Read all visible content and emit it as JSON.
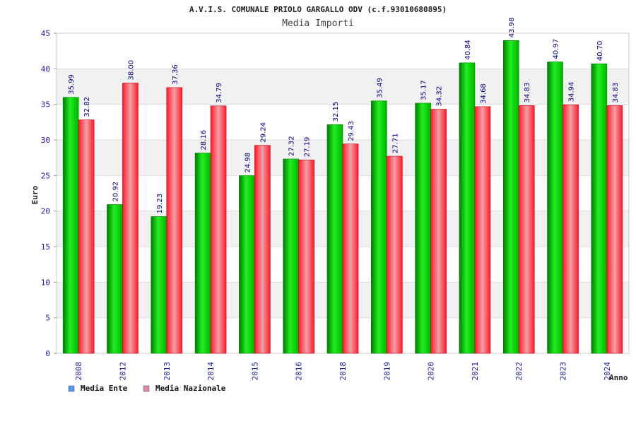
{
  "chart_data": {
    "type": "bar",
    "title": "A.V.I.S. COMUNALE PRIOLO GARGALLO ODV (c.f.93010680895)",
    "subtitle": "Media Importi",
    "xlabel": "Anno",
    "ylabel": "Euro",
    "ylim": [
      0,
      45
    ],
    "yticks": [
      0,
      5,
      10,
      15,
      20,
      25,
      30,
      35,
      40,
      45
    ],
    "categories": [
      "2008",
      "2012",
      "2013",
      "2014",
      "2015",
      "2016",
      "2018",
      "2019",
      "2020",
      "2021",
      "2022",
      "2023",
      "2024"
    ],
    "series": [
      {
        "name": "Media Ente",
        "color": "#00cc00",
        "legend_color": "#5599ee",
        "values": [
          35.99,
          20.92,
          19.23,
          28.16,
          24.98,
          27.32,
          32.15,
          35.49,
          35.17,
          40.84,
          43.98,
          40.97,
          40.7
        ],
        "labels": [
          "35.99",
          "20.92",
          "19.23",
          "28.16",
          "24.98",
          "27.32",
          "32.15",
          "35.49",
          "35.17",
          "40.84",
          "43.98",
          "40.97",
          "40.70"
        ]
      },
      {
        "name": "Media Nazionale",
        "color": "#ee2233",
        "legend_color": "#dd88aa",
        "values": [
          32.82,
          38.0,
          37.36,
          34.79,
          29.24,
          27.19,
          29.43,
          27.71,
          34.32,
          34.68,
          34.83,
          34.94,
          34.83
        ],
        "labels": [
          "32.82",
          "38.00",
          "37.36",
          "34.79",
          "29.24",
          "27.19",
          "29.43",
          "27.71",
          "34.32",
          "34.68",
          "34.83",
          "34.94",
          "34.83"
        ]
      }
    ],
    "grid": true,
    "legend_position": "bottom-left"
  }
}
